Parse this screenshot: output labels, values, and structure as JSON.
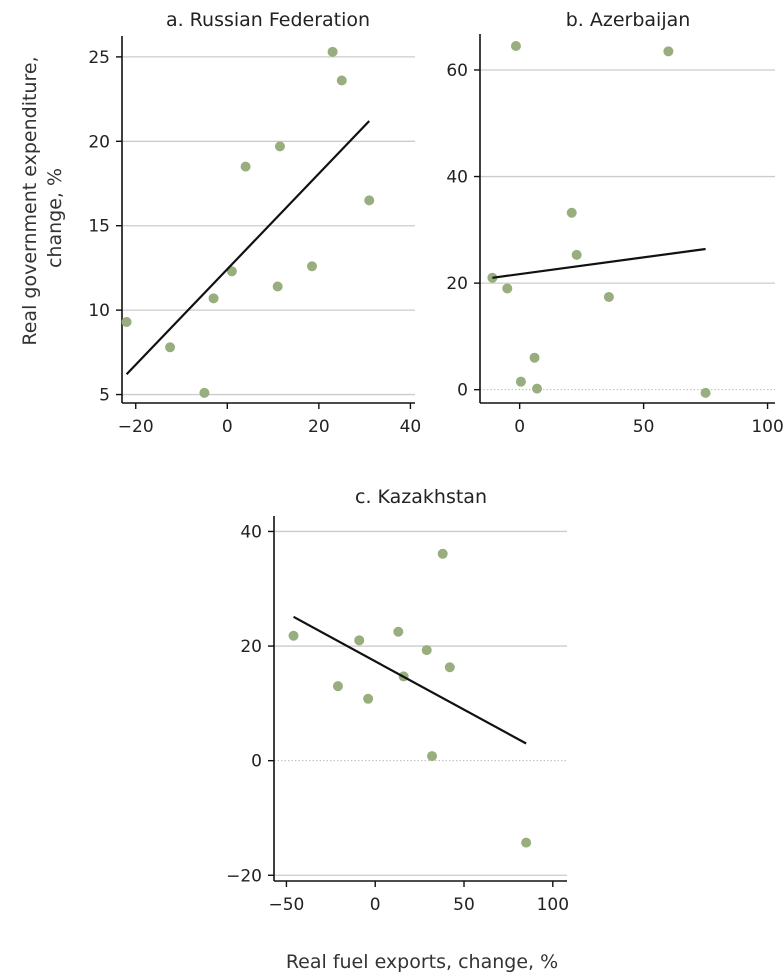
{
  "xlabel": "Real fuel exports, change, %",
  "ylabel_line1": "Real government expenditure,",
  "ylabel_line2": "change, %",
  "point_color": "#98AE7E",
  "chart_data": [
    {
      "type": "scatter",
      "title": "a. Russian Federation",
      "xlim": [
        -23,
        41
      ],
      "ylim": [
        4.5,
        26
      ],
      "xticks": [
        -20,
        0,
        20,
        40
      ],
      "yticks": [
        5,
        10,
        15,
        20,
        25
      ],
      "xtick_labels": [
        "−20",
        "0",
        "20",
        "40"
      ],
      "ytick_labels": [
        "5",
        "10",
        "15",
        "20",
        "25"
      ],
      "points": [
        [
          -22,
          9.3
        ],
        [
          -12.5,
          7.8
        ],
        [
          -5,
          5.1
        ],
        [
          -3,
          10.7
        ],
        [
          1,
          12.3
        ],
        [
          4,
          18.5
        ],
        [
          11,
          11.4
        ],
        [
          11.5,
          19.7
        ],
        [
          18.5,
          12.6
        ],
        [
          23,
          25.3
        ],
        [
          25,
          23.6
        ],
        [
          31,
          16.5
        ]
      ],
      "trend": [
        [
          -22,
          6.2
        ],
        [
          31,
          21.2
        ]
      ]
    },
    {
      "type": "scatter",
      "title": "b. Azerbaijan",
      "xlim": [
        -16,
        103
      ],
      "ylim": [
        -2.5,
        66
      ],
      "xticks": [
        0,
        50,
        100
      ],
      "yticks": [
        0,
        20,
        40,
        60
      ],
      "xtick_labels": [
        "0",
        "50",
        "100"
      ],
      "ytick_labels": [
        "0",
        "20",
        "40",
        "60"
      ],
      "points": [
        [
          -11,
          21
        ],
        [
          -5,
          19
        ],
        [
          -1.5,
          64.5
        ],
        [
          0.5,
          1.5
        ],
        [
          6,
          6
        ],
        [
          7,
          0.2
        ],
        [
          21,
          33.2
        ],
        [
          23,
          25.3
        ],
        [
          36,
          17.4
        ],
        [
          60,
          63.5
        ],
        [
          75,
          -0.6
        ]
      ],
      "trend": [
        [
          -11,
          21
        ],
        [
          75,
          26.4
        ]
      ]
    },
    {
      "type": "scatter",
      "title": "c. Kazakhstan",
      "xlim": [
        -57,
        108
      ],
      "ylim": [
        -21,
        42
      ],
      "xticks": [
        -50,
        0,
        50,
        100
      ],
      "yticks": [
        -20,
        0,
        20,
        40
      ],
      "xtick_labels": [
        "−50",
        "0",
        "50",
        "100"
      ],
      "ytick_labels": [
        "−20",
        "0",
        "20",
        "40"
      ],
      "points": [
        [
          -46,
          21.8
        ],
        [
          -21,
          13
        ],
        [
          -9,
          21
        ],
        [
          -4,
          10.8
        ],
        [
          13,
          22.5
        ],
        [
          16,
          14.7
        ],
        [
          29,
          19.3
        ],
        [
          32,
          0.8
        ],
        [
          38,
          36.1
        ],
        [
          42,
          16.3
        ],
        [
          85,
          -14.3
        ]
      ],
      "trend": [
        [
          -46,
          25.1
        ],
        [
          85,
          3
        ]
      ]
    }
  ]
}
